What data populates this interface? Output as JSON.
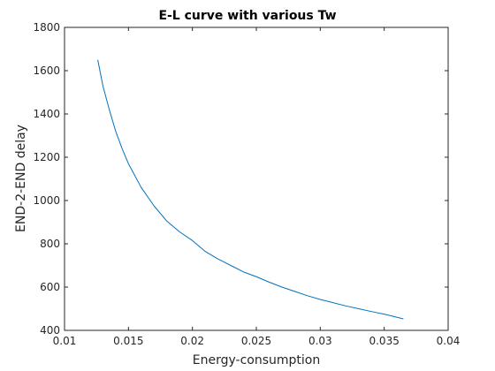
{
  "chart_data": {
    "type": "line",
    "title": "E-L curve with various Tw",
    "xlabel": "Energy-consumption",
    "ylabel": "END-2-END delay",
    "xlim": [
      0.01,
      0.04
    ],
    "ylim": [
      400,
      1800
    ],
    "xticks": [
      "0.01",
      "0.015",
      "0.02",
      "0.025",
      "0.03",
      "0.035",
      "0.04"
    ],
    "yticks": [
      "400",
      "600",
      "800",
      "1000",
      "1200",
      "1400",
      "1600",
      "1800"
    ],
    "grid": false,
    "series": [
      {
        "color": "#0072bd",
        "x": [
          0.0126,
          0.013,
          0.0135,
          0.014,
          0.0145,
          0.015,
          0.016,
          0.017,
          0.018,
          0.019,
          0.02,
          0.021,
          0.022,
          0.023,
          0.024,
          0.025,
          0.026,
          0.027,
          0.028,
          0.029,
          0.03,
          0.031,
          0.032,
          0.033,
          0.034,
          0.035,
          0.0365
        ],
        "y": [
          1650,
          1530,
          1420,
          1320,
          1240,
          1170,
          1060,
          975,
          905,
          855,
          815,
          765,
          730,
          700,
          670,
          648,
          623,
          600,
          580,
          560,
          543,
          528,
          513,
          500,
          487,
          475,
          453
        ]
      }
    ]
  }
}
